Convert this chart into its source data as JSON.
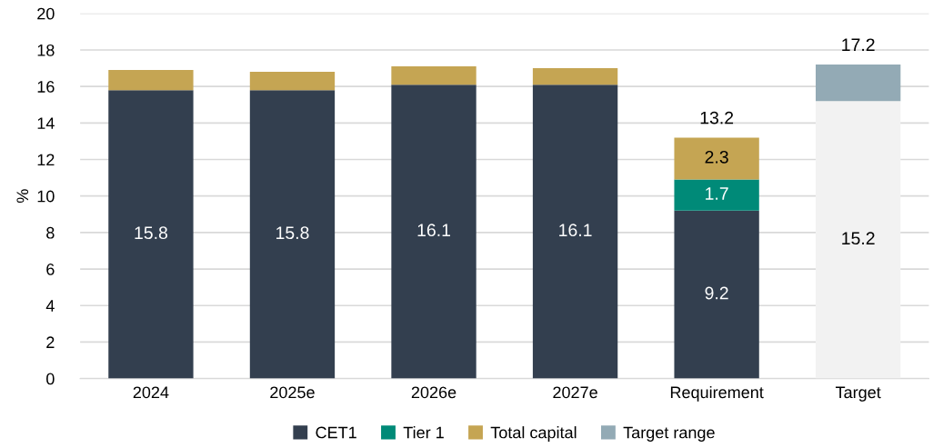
{
  "chart_data": {
    "type": "bar",
    "stacked": true,
    "ylabel": "%",
    "categories": [
      "2024",
      "2025e",
      "2026e",
      "2027e",
      "Requirement",
      "Target"
    ],
    "series": [
      {
        "name": "CET1",
        "color": "#333f4f",
        "values": [
          15.8,
          15.8,
          16.1,
          16.1,
          9.2,
          null
        ],
        "value_labels": [
          "15.8",
          "15.8",
          "16.1",
          "16.1",
          "9.2",
          null
        ]
      },
      {
        "name": "Tier 1",
        "color": "#008a78",
        "values": [
          null,
          null,
          null,
          null,
          1.7,
          null
        ],
        "value_labels": [
          null,
          null,
          null,
          null,
          "1.7",
          null
        ]
      },
      {
        "name": "Total capital",
        "color": "#c5a553",
        "values": [
          1.1,
          1.0,
          1.0,
          0.9,
          2.3,
          null
        ],
        "value_labels": [
          null,
          null,
          null,
          null,
          "2.3",
          null
        ]
      },
      {
        "color": "#f2f2f2",
        "values": [
          null,
          null,
          null,
          null,
          null,
          15.2
        ],
        "value_labels": [
          null,
          null,
          null,
          null,
          null,
          "15.2"
        ]
      },
      {
        "name": "Target range",
        "color": "#93aab5",
        "values": [
          null,
          null,
          null,
          null,
          null,
          2.0
        ]
      }
    ],
    "totals": [
      null,
      null,
      null,
      null,
      "13.2",
      "17.2"
    ],
    "ylim": [
      0,
      20
    ],
    "yticks": [
      0,
      2,
      4,
      6,
      8,
      10,
      12,
      14,
      16,
      18,
      20
    ],
    "grid": "y",
    "legend": "bottom"
  }
}
